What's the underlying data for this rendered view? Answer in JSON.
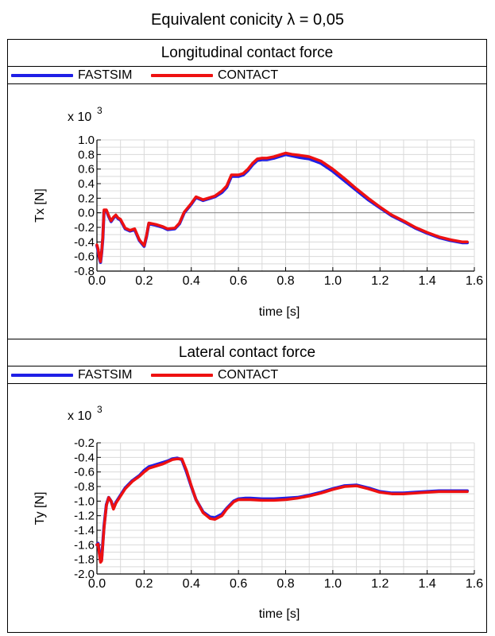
{
  "figure_title": "Equivalent conicity λ = 0,05",
  "colors": {
    "fastsim": "#1f1fe6",
    "contact": "#ee1111",
    "grid": "#d9d9d9"
  },
  "chart_data": [
    {
      "type": "line",
      "title": "Longitudinal contact force",
      "legend": [
        "FASTSIM",
        "CONTACT"
      ],
      "legend_position": "top-left",
      "xlabel": "time [s]",
      "ylabel": "Tx [N]",
      "multiplier": "x 10",
      "exponent": "3",
      "xlim": [
        0,
        1.6
      ],
      "ylim": [
        -0.8,
        1.0
      ],
      "xticks": [
        "0.0",
        "0.2",
        "0.4",
        "0.6",
        "0.8",
        "1.0",
        "1.2",
        "1.4",
        "1.6"
      ],
      "yticks": [
        "1.0",
        "0.8",
        "0.6",
        "0.4",
        "0.2",
        "0.0",
        "-0.2",
        "-0.4",
        "-0.6",
        "-0.8"
      ],
      "grid": true,
      "series": [
        {
          "name": "FASTSIM",
          "x": [
            0.0,
            0.005,
            0.01,
            0.015,
            0.02,
            0.025,
            0.03,
            0.04,
            0.05,
            0.06,
            0.07,
            0.08,
            0.09,
            0.1,
            0.12,
            0.14,
            0.16,
            0.18,
            0.2,
            0.21,
            0.22,
            0.25,
            0.28,
            0.3,
            0.33,
            0.35,
            0.37,
            0.4,
            0.42,
            0.45,
            0.48,
            0.5,
            0.53,
            0.55,
            0.57,
            0.6,
            0.62,
            0.64,
            0.66,
            0.68,
            0.7,
            0.72,
            0.75,
            0.78,
            0.8,
            0.83,
            0.86,
            0.9,
            0.95,
            1.0,
            1.05,
            1.1,
            1.15,
            1.2,
            1.25,
            1.3,
            1.35,
            1.4,
            1.45,
            1.5,
            1.55,
            1.57
          ],
          "y": [
            -0.45,
            -0.52,
            -0.62,
            -0.68,
            -0.55,
            -0.35,
            0.02,
            0.03,
            -0.05,
            -0.12,
            -0.07,
            -0.04,
            -0.08,
            -0.1,
            -0.22,
            -0.25,
            -0.23,
            -0.38,
            -0.46,
            -0.33,
            -0.15,
            -0.17,
            -0.2,
            -0.23,
            -0.22,
            -0.15,
            0.0,
            0.12,
            0.21,
            0.17,
            0.2,
            0.22,
            0.28,
            0.35,
            0.5,
            0.5,
            0.52,
            0.58,
            0.66,
            0.72,
            0.73,
            0.73,
            0.75,
            0.78,
            0.8,
            0.78,
            0.76,
            0.74,
            0.68,
            0.57,
            0.44,
            0.31,
            0.18,
            0.07,
            -0.04,
            -0.12,
            -0.21,
            -0.28,
            -0.34,
            -0.38,
            -0.41,
            -0.41
          ]
        },
        {
          "name": "CONTACT",
          "x": [
            0.0,
            0.005,
            0.01,
            0.015,
            0.02,
            0.025,
            0.03,
            0.04,
            0.05,
            0.06,
            0.07,
            0.08,
            0.09,
            0.1,
            0.12,
            0.14,
            0.16,
            0.18,
            0.2,
            0.21,
            0.22,
            0.25,
            0.28,
            0.3,
            0.33,
            0.35,
            0.37,
            0.4,
            0.42,
            0.45,
            0.48,
            0.5,
            0.53,
            0.55,
            0.57,
            0.6,
            0.62,
            0.64,
            0.66,
            0.68,
            0.7,
            0.72,
            0.75,
            0.78,
            0.8,
            0.83,
            0.86,
            0.9,
            0.95,
            1.0,
            1.05,
            1.1,
            1.15,
            1.2,
            1.25,
            1.3,
            1.35,
            1.4,
            1.45,
            1.5,
            1.55,
            1.57
          ],
          "y": [
            -0.44,
            -0.5,
            -0.61,
            -0.67,
            -0.54,
            -0.33,
            0.04,
            0.04,
            -0.04,
            -0.11,
            -0.06,
            -0.03,
            -0.07,
            -0.09,
            -0.21,
            -0.24,
            -0.22,
            -0.37,
            -0.45,
            -0.32,
            -0.14,
            -0.16,
            -0.19,
            -0.22,
            -0.21,
            -0.14,
            0.01,
            0.13,
            0.22,
            0.18,
            0.21,
            0.23,
            0.3,
            0.37,
            0.52,
            0.52,
            0.54,
            0.6,
            0.68,
            0.74,
            0.75,
            0.75,
            0.77,
            0.8,
            0.82,
            0.8,
            0.79,
            0.77,
            0.71,
            0.6,
            0.47,
            0.33,
            0.2,
            0.08,
            -0.03,
            -0.11,
            -0.2,
            -0.27,
            -0.33,
            -0.37,
            -0.4,
            -0.4
          ]
        }
      ]
    },
    {
      "type": "line",
      "title": "Lateral contact force",
      "legend": [
        "FASTSIM",
        "CONTACT"
      ],
      "legend_position": "top-left",
      "xlabel": "time [s]",
      "ylabel": "Ty [N]",
      "multiplier": "x 10",
      "exponent": "3",
      "xlim": [
        0,
        1.6
      ],
      "ylim": [
        -2.0,
        -0.2
      ],
      "xticks": [
        "0.0",
        "0.2",
        "0.4",
        "0.6",
        "0.8",
        "1.0",
        "1.2",
        "1.4",
        "1.6"
      ],
      "yticks": [
        "-0.2",
        "-0.4",
        "-0.6",
        "-0.8",
        "-1.0",
        "-1.2",
        "-1.4",
        "-1.6",
        "-1.8",
        "-2.0"
      ],
      "grid": true,
      "series": [
        {
          "name": "FASTSIM",
          "x": [
            0.0,
            0.005,
            0.01,
            0.015,
            0.02,
            0.03,
            0.04,
            0.05,
            0.06,
            0.07,
            0.08,
            0.1,
            0.12,
            0.15,
            0.18,
            0.2,
            0.22,
            0.25,
            0.28,
            0.3,
            0.32,
            0.34,
            0.36,
            0.38,
            0.4,
            0.42,
            0.45,
            0.48,
            0.5,
            0.53,
            0.55,
            0.58,
            0.6,
            0.63,
            0.65,
            0.7,
            0.75,
            0.8,
            0.85,
            0.9,
            0.95,
            1.0,
            1.05,
            1.1,
            1.15,
            1.2,
            1.25,
            1.3,
            1.35,
            1.4,
            1.45,
            1.5,
            1.57
          ],
          "y": [
            -1.6,
            -1.58,
            -1.7,
            -1.82,
            -1.8,
            -1.35,
            -1.05,
            -0.95,
            -1.0,
            -1.1,
            -1.02,
            -0.92,
            -0.82,
            -0.72,
            -0.65,
            -0.58,
            -0.53,
            -0.5,
            -0.47,
            -0.45,
            -0.42,
            -0.41,
            -0.43,
            -0.6,
            -0.8,
            -0.98,
            -1.15,
            -1.22,
            -1.23,
            -1.18,
            -1.1,
            -1.0,
            -0.97,
            -0.96,
            -0.96,
            -0.97,
            -0.97,
            -0.96,
            -0.95,
            -0.92,
            -0.88,
            -0.83,
            -0.79,
            -0.78,
            -0.82,
            -0.87,
            -0.89,
            -0.89,
            -0.88,
            -0.87,
            -0.86,
            -0.86,
            -0.86
          ]
        },
        {
          "name": "CONTACT",
          "x": [
            0.0,
            0.005,
            0.01,
            0.015,
            0.02,
            0.03,
            0.04,
            0.05,
            0.06,
            0.07,
            0.08,
            0.1,
            0.12,
            0.15,
            0.18,
            0.2,
            0.22,
            0.25,
            0.28,
            0.3,
            0.32,
            0.34,
            0.36,
            0.38,
            0.4,
            0.42,
            0.45,
            0.48,
            0.5,
            0.53,
            0.55,
            0.58,
            0.6,
            0.63,
            0.65,
            0.7,
            0.75,
            0.8,
            0.85,
            0.9,
            0.95,
            1.0,
            1.05,
            1.1,
            1.15,
            1.2,
            1.25,
            1.3,
            1.35,
            1.4,
            1.45,
            1.5,
            1.57
          ],
          "y": [
            -1.6,
            -1.59,
            -1.72,
            -1.84,
            -1.82,
            -1.37,
            -1.06,
            -0.95,
            -1.0,
            -1.11,
            -1.03,
            -0.93,
            -0.83,
            -0.73,
            -0.66,
            -0.6,
            -0.55,
            -0.52,
            -0.49,
            -0.46,
            -0.43,
            -0.42,
            -0.42,
            -0.58,
            -0.79,
            -0.98,
            -1.16,
            -1.24,
            -1.25,
            -1.2,
            -1.11,
            -1.01,
            -0.98,
            -0.98,
            -0.98,
            -0.99,
            -0.99,
            -0.98,
            -0.96,
            -0.93,
            -0.89,
            -0.84,
            -0.8,
            -0.79,
            -0.83,
            -0.88,
            -0.9,
            -0.9,
            -0.89,
            -0.88,
            -0.87,
            -0.87,
            -0.87
          ]
        }
      ]
    }
  ]
}
